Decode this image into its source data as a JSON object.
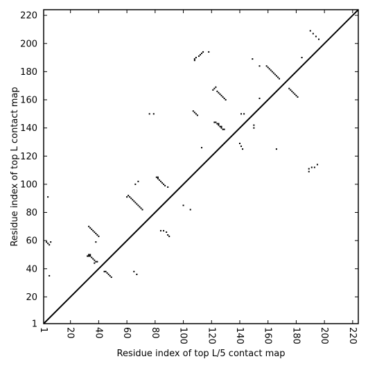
{
  "chart_data": {
    "type": "heatmap",
    "title": "",
    "xlabel": "Residue index of top L/5 contact map",
    "ylabel": "Residue index of top L contact map",
    "xlim": [
      1,
      224
    ],
    "ylim": [
      1,
      224
    ],
    "x_ticks": [
      1,
      20,
      40,
      60,
      80,
      100,
      120,
      140,
      160,
      180,
      200,
      220
    ],
    "y_ticks": [
      1,
      20,
      40,
      60,
      80,
      100,
      120,
      140,
      160,
      180,
      200,
      220
    ],
    "x_tick_rotation": "vertical",
    "diagonal_line": true,
    "grid": false,
    "cell_color": "#000000",
    "background_color": "#ffffff",
    "lower_triangle_contacts": [
      [
        33,
        50
      ],
      [
        34,
        50
      ],
      [
        32,
        49
      ],
      [
        33,
        49
      ],
      [
        34,
        49
      ],
      [
        35,
        48
      ],
      [
        36,
        47
      ],
      [
        37,
        46
      ],
      [
        38,
        45
      ],
      [
        39,
        45
      ],
      [
        37,
        44
      ],
      [
        44,
        38
      ],
      [
        45,
        38
      ],
      [
        46,
        37
      ],
      [
        47,
        36
      ],
      [
        48,
        35
      ],
      [
        49,
        34
      ],
      [
        5,
        35
      ],
      [
        65,
        38
      ],
      [
        67,
        36
      ],
      [
        81,
        105
      ],
      [
        82,
        105
      ],
      [
        82,
        104
      ],
      [
        83,
        103
      ],
      [
        84,
        102
      ],
      [
        85,
        101
      ],
      [
        86,
        100
      ],
      [
        87,
        99
      ],
      [
        89,
        98
      ],
      [
        84,
        67
      ],
      [
        86,
        67
      ],
      [
        88,
        66
      ],
      [
        89,
        64
      ],
      [
        90,
        63
      ],
      [
        100,
        85
      ],
      [
        105,
        82
      ],
      [
        113,
        126
      ],
      [
        122,
        144
      ],
      [
        123,
        144
      ],
      [
        124,
        143
      ],
      [
        125,
        143
      ],
      [
        125,
        142
      ],
      [
        126,
        141
      ],
      [
        127,
        141
      ],
      [
        127,
        140
      ],
      [
        128,
        139
      ],
      [
        129,
        139
      ],
      [
        140,
        129
      ],
      [
        141,
        127
      ],
      [
        142,
        125
      ],
      [
        150,
        142
      ],
      [
        150,
        140
      ],
      [
        166,
        125
      ],
      [
        189,
        109
      ],
      [
        189,
        111
      ],
      [
        191,
        112
      ],
      [
        193,
        112
      ],
      [
        195,
        114
      ]
    ],
    "upper_triangle_contacts": [
      [
        4,
        91
      ],
      [
        3,
        59
      ],
      [
        4,
        58
      ],
      [
        5,
        57
      ],
      [
        6,
        59
      ],
      [
        33,
        70
      ],
      [
        34,
        69
      ],
      [
        35,
        68
      ],
      [
        36,
        67
      ],
      [
        37,
        66
      ],
      [
        38,
        65
      ],
      [
        39,
        64
      ],
      [
        40,
        63
      ],
      [
        38,
        59
      ],
      [
        60,
        91
      ],
      [
        61,
        92
      ],
      [
        62,
        91
      ],
      [
        63,
        90
      ],
      [
        64,
        89
      ],
      [
        65,
        88
      ],
      [
        66,
        87
      ],
      [
        67,
        86
      ],
      [
        68,
        85
      ],
      [
        69,
        84
      ],
      [
        70,
        83
      ],
      [
        71,
        82
      ],
      [
        66,
        100
      ],
      [
        68,
        102
      ],
      [
        76,
        150
      ],
      [
        79,
        150
      ],
      [
        107,
        152
      ],
      [
        108,
        151
      ],
      [
        109,
        150
      ],
      [
        110,
        149
      ],
      [
        108,
        188
      ],
      [
        108,
        189
      ],
      [
        109,
        190
      ],
      [
        111,
        191
      ],
      [
        112,
        192
      ],
      [
        113,
        193
      ],
      [
        114,
        194
      ],
      [
        118,
        194
      ],
      [
        121,
        167
      ],
      [
        122,
        168
      ],
      [
        123,
        169
      ],
      [
        124,
        166
      ],
      [
        125,
        165
      ],
      [
        126,
        164
      ],
      [
        127,
        163
      ],
      [
        128,
        162
      ],
      [
        129,
        161
      ],
      [
        130,
        160
      ],
      [
        141,
        150
      ],
      [
        143,
        150
      ],
      [
        149,
        189
      ],
      [
        154,
        184
      ],
      [
        154,
        161
      ],
      [
        159,
        184
      ],
      [
        160,
        183
      ],
      [
        161,
        182
      ],
      [
        162,
        181
      ],
      [
        163,
        180
      ],
      [
        164,
        179
      ],
      [
        165,
        178
      ],
      [
        166,
        177
      ],
      [
        167,
        176
      ],
      [
        168,
        175
      ],
      [
        175,
        168
      ],
      [
        176,
        167
      ],
      [
        177,
        166
      ],
      [
        178,
        165
      ],
      [
        179,
        164
      ],
      [
        180,
        163
      ],
      [
        181,
        162
      ],
      [
        184,
        190
      ],
      [
        190,
        209
      ],
      [
        192,
        207
      ],
      [
        194,
        205
      ],
      [
        196,
        203
      ]
    ]
  }
}
